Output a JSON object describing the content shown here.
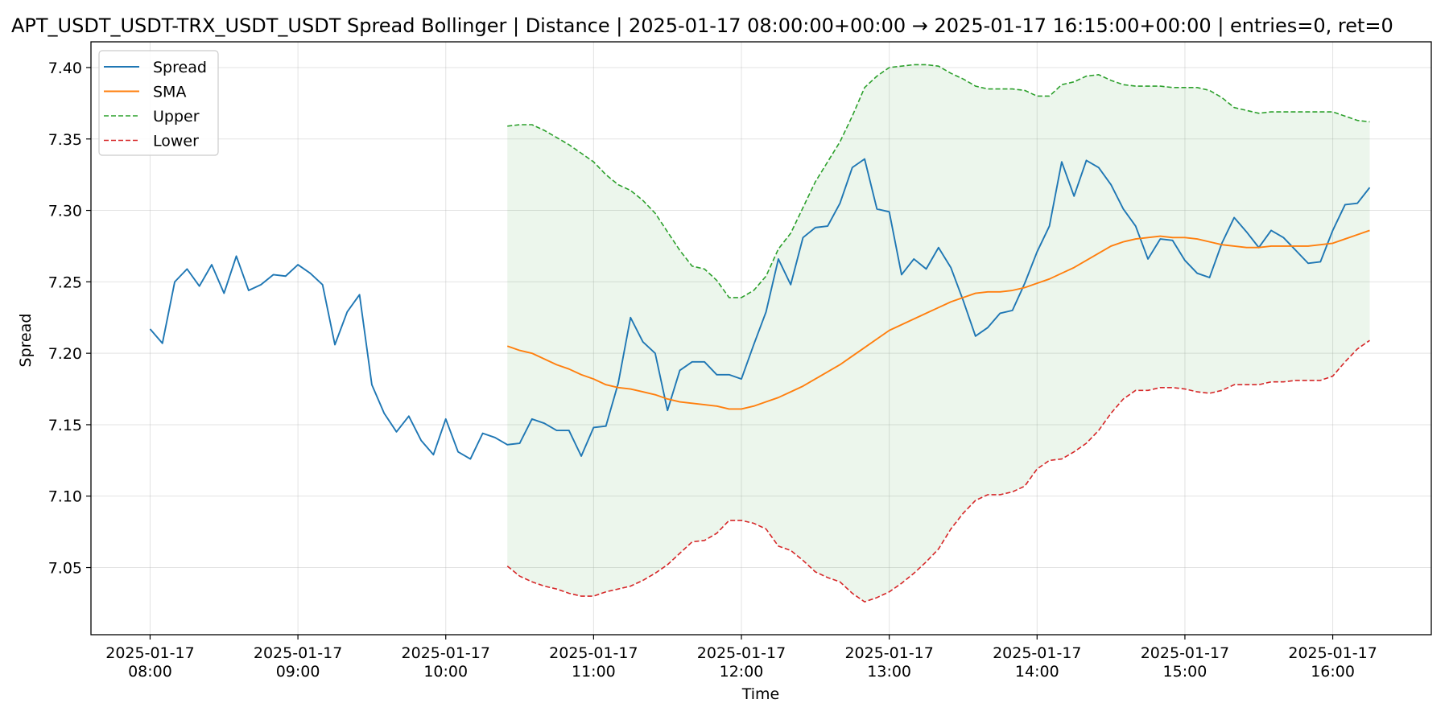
{
  "chart_data": {
    "type": "line",
    "title": "APT_USDT_USDT-TRX_USDT_USDT Spread Bollinger  | Distance | 2025-01-17 08:00:00+00:00 → 2025-01-17 16:15:00+00:00 | entries=0, ret=0",
    "xlabel": "Time",
    "ylabel": "Spread",
    "xlim": [
      "2025-01-17 07:36",
      "2025-01-17 16:40"
    ],
    "ylim": [
      7.003,
      7.418
    ],
    "yticks": [
      7.05,
      7.1,
      7.15,
      7.2,
      7.25,
      7.3,
      7.35,
      7.4
    ],
    "ytick_labels": [
      "7.05",
      "7.10",
      "7.15",
      "7.20",
      "7.25",
      "7.30",
      "7.35",
      "7.40"
    ],
    "xticks": [
      "2025-01-17 08:00",
      "2025-01-17 09:00",
      "2025-01-17 10:00",
      "2025-01-17 11:00",
      "2025-01-17 12:00",
      "2025-01-17 13:00",
      "2025-01-17 14:00",
      "2025-01-17 15:00",
      "2025-01-17 16:00"
    ],
    "xtick_labels": [
      [
        "2025-01-17",
        "08:00"
      ],
      [
        "2025-01-17",
        "09:00"
      ],
      [
        "2025-01-17",
        "10:00"
      ],
      [
        "2025-01-17",
        "11:00"
      ],
      [
        "2025-01-17",
        "12:00"
      ],
      [
        "2025-01-17",
        "13:00"
      ],
      [
        "2025-01-17",
        "14:00"
      ],
      [
        "2025-01-17",
        "15:00"
      ],
      [
        "2025-01-17",
        "16:00"
      ]
    ],
    "grid": true,
    "legend_position": "top-left",
    "x": [
      "2025-01-17 08:00",
      "2025-01-17 08:05",
      "2025-01-17 08:10",
      "2025-01-17 08:15",
      "2025-01-17 08:20",
      "2025-01-17 08:25",
      "2025-01-17 08:30",
      "2025-01-17 08:35",
      "2025-01-17 08:40",
      "2025-01-17 08:45",
      "2025-01-17 08:50",
      "2025-01-17 08:55",
      "2025-01-17 09:00",
      "2025-01-17 09:05",
      "2025-01-17 09:10",
      "2025-01-17 09:15",
      "2025-01-17 09:20",
      "2025-01-17 09:25",
      "2025-01-17 09:30",
      "2025-01-17 09:35",
      "2025-01-17 09:40",
      "2025-01-17 09:45",
      "2025-01-17 09:50",
      "2025-01-17 09:55",
      "2025-01-17 10:00",
      "2025-01-17 10:05",
      "2025-01-17 10:10",
      "2025-01-17 10:15",
      "2025-01-17 10:20",
      "2025-01-17 10:25",
      "2025-01-17 10:30",
      "2025-01-17 10:35",
      "2025-01-17 10:40",
      "2025-01-17 10:45",
      "2025-01-17 10:50",
      "2025-01-17 10:55",
      "2025-01-17 11:00",
      "2025-01-17 11:05",
      "2025-01-17 11:10",
      "2025-01-17 11:15",
      "2025-01-17 11:20",
      "2025-01-17 11:25",
      "2025-01-17 11:30",
      "2025-01-17 11:35",
      "2025-01-17 11:40",
      "2025-01-17 11:45",
      "2025-01-17 11:50",
      "2025-01-17 11:55",
      "2025-01-17 12:00",
      "2025-01-17 12:05",
      "2025-01-17 12:10",
      "2025-01-17 12:15",
      "2025-01-17 12:20",
      "2025-01-17 12:25",
      "2025-01-17 12:30",
      "2025-01-17 12:35",
      "2025-01-17 12:40",
      "2025-01-17 12:45",
      "2025-01-17 12:50",
      "2025-01-17 12:55",
      "2025-01-17 13:00",
      "2025-01-17 13:05",
      "2025-01-17 13:10",
      "2025-01-17 13:15",
      "2025-01-17 13:20",
      "2025-01-17 13:25",
      "2025-01-17 13:30",
      "2025-01-17 13:35",
      "2025-01-17 13:40",
      "2025-01-17 13:45",
      "2025-01-17 13:50",
      "2025-01-17 13:55",
      "2025-01-17 14:00",
      "2025-01-17 14:05",
      "2025-01-17 14:10",
      "2025-01-17 14:15",
      "2025-01-17 14:20",
      "2025-01-17 14:25",
      "2025-01-17 14:30",
      "2025-01-17 14:35",
      "2025-01-17 14:40",
      "2025-01-17 14:45",
      "2025-01-17 14:50",
      "2025-01-17 14:55",
      "2025-01-17 15:00",
      "2025-01-17 15:05",
      "2025-01-17 15:10",
      "2025-01-17 15:15",
      "2025-01-17 15:20",
      "2025-01-17 15:25",
      "2025-01-17 15:30",
      "2025-01-17 15:35",
      "2025-01-17 15:40",
      "2025-01-17 15:45",
      "2025-01-17 15:50",
      "2025-01-17 15:55",
      "2025-01-17 16:00",
      "2025-01-17 16:05",
      "2025-01-17 16:10",
      "2025-01-17 16:15"
    ],
    "series": [
      {
        "name": "Spread",
        "color": "#1f77b4",
        "dash": "solid",
        "values": [
          7.217,
          7.207,
          7.25,
          7.259,
          7.247,
          7.262,
          7.242,
          7.268,
          7.244,
          7.248,
          7.255,
          7.254,
          7.262,
          7.256,
          7.248,
          7.206,
          7.229,
          7.241,
          7.178,
          7.158,
          7.145,
          7.156,
          7.139,
          7.129,
          7.154,
          7.131,
          7.126,
          7.144,
          7.141,
          7.136,
          7.137,
          7.154,
          7.151,
          7.146,
          7.146,
          7.128,
          7.148,
          7.149,
          7.179,
          7.225,
          7.208,
          7.2,
          7.16,
          7.188,
          7.194,
          7.194,
          7.185,
          7.185,
          7.182,
          7.206,
          7.229,
          7.266,
          7.248,
          7.281,
          7.288,
          7.289,
          7.305,
          7.33,
          7.336,
          7.301,
          7.299,
          7.255,
          7.266,
          7.259,
          7.274,
          7.26,
          7.237,
          7.212,
          7.218,
          7.228,
          7.23,
          7.249,
          7.271,
          7.289,
          7.334,
          7.31,
          7.335,
          7.33,
          7.318,
          7.301,
          7.289,
          7.266,
          7.28,
          7.279,
          7.265,
          7.256,
          7.253,
          7.277,
          7.295,
          7.285,
          7.274,
          7.286,
          7.281,
          7.272,
          7.263,
          7.264,
          7.286,
          7.304,
          7.305,
          7.316
        ]
      },
      {
        "name": "SMA",
        "color": "#ff7f0e",
        "dash": "solid",
        "values": [
          null,
          null,
          null,
          null,
          null,
          null,
          null,
          null,
          null,
          null,
          null,
          null,
          null,
          null,
          null,
          null,
          null,
          null,
          null,
          null,
          null,
          null,
          null,
          null,
          null,
          null,
          null,
          null,
          null,
          7.205,
          7.202,
          7.2,
          7.196,
          7.192,
          7.189,
          7.185,
          7.182,
          7.178,
          7.176,
          7.175,
          7.173,
          7.171,
          7.168,
          7.166,
          7.165,
          7.164,
          7.163,
          7.161,
          7.161,
          7.163,
          7.166,
          7.169,
          7.173,
          7.177,
          7.182,
          7.187,
          7.192,
          7.198,
          7.204,
          7.21,
          7.216,
          7.22,
          7.224,
          7.228,
          7.232,
          7.236,
          7.239,
          7.242,
          7.243,
          7.243,
          7.244,
          7.246,
          7.249,
          7.252,
          7.256,
          7.26,
          7.265,
          7.27,
          7.275,
          7.278,
          7.28,
          7.281,
          7.282,
          7.281,
          7.281,
          7.28,
          7.278,
          7.276,
          7.275,
          7.274,
          7.274,
          7.275,
          7.275,
          7.275,
          7.275,
          7.276,
          7.277,
          7.28,
          7.283,
          7.286
        ]
      },
      {
        "name": "Upper",
        "color": "#2ca02c",
        "dash": "dashed",
        "values": [
          null,
          null,
          null,
          null,
          null,
          null,
          null,
          null,
          null,
          null,
          null,
          null,
          null,
          null,
          null,
          null,
          null,
          null,
          null,
          null,
          null,
          null,
          null,
          null,
          null,
          null,
          null,
          null,
          null,
          7.359,
          7.36,
          7.36,
          7.356,
          7.351,
          7.346,
          7.34,
          7.334,
          7.325,
          7.318,
          7.314,
          7.307,
          7.298,
          7.285,
          7.272,
          7.261,
          7.259,
          7.251,
          7.239,
          7.239,
          7.244,
          7.254,
          7.273,
          7.284,
          7.302,
          7.32,
          7.334,
          7.348,
          7.366,
          7.386,
          7.394,
          7.4,
          7.401,
          7.402,
          7.402,
          7.401,
          7.396,
          7.392,
          7.387,
          7.385,
          7.385,
          7.385,
          7.384,
          7.38,
          7.38,
          7.388,
          7.39,
          7.394,
          7.395,
          7.391,
          7.388,
          7.387,
          7.387,
          7.387,
          7.386,
          7.386,
          7.386,
          7.384,
          7.379,
          7.372,
          7.37,
          7.368,
          7.369,
          7.369,
          7.369,
          7.369,
          7.369,
          7.369,
          7.366,
          7.363,
          7.362
        ]
      },
      {
        "name": "Lower",
        "color": "#d62728",
        "dash": "dashed",
        "values": [
          null,
          null,
          null,
          null,
          null,
          null,
          null,
          null,
          null,
          null,
          null,
          null,
          null,
          null,
          null,
          null,
          null,
          null,
          null,
          null,
          null,
          null,
          null,
          null,
          null,
          null,
          null,
          null,
          null,
          7.051,
          7.044,
          7.04,
          7.037,
          7.035,
          7.032,
          7.03,
          7.03,
          7.033,
          7.035,
          7.037,
          7.041,
          7.046,
          7.052,
          7.06,
          7.068,
          7.069,
          7.074,
          7.083,
          7.083,
          7.081,
          7.077,
          7.065,
          7.062,
          7.055,
          7.047,
          7.043,
          7.04,
          7.032,
          7.026,
          7.029,
          7.033,
          7.039,
          7.046,
          7.054,
          7.063,
          7.077,
          7.088,
          7.097,
          7.101,
          7.101,
          7.103,
          7.107,
          7.119,
          7.125,
          7.126,
          7.131,
          7.137,
          7.146,
          7.158,
          7.168,
          7.174,
          7.174,
          7.176,
          7.176,
          7.175,
          7.173,
          7.172,
          7.174,
          7.178,
          7.178,
          7.178,
          7.18,
          7.18,
          7.181,
          7.181,
          7.181,
          7.184,
          7.194,
          7.203,
          7.209
        ]
      }
    ],
    "band": {
      "between": [
        "Upper",
        "Lower"
      ],
      "color": "#2ca02c",
      "opacity": 0.09
    }
  }
}
